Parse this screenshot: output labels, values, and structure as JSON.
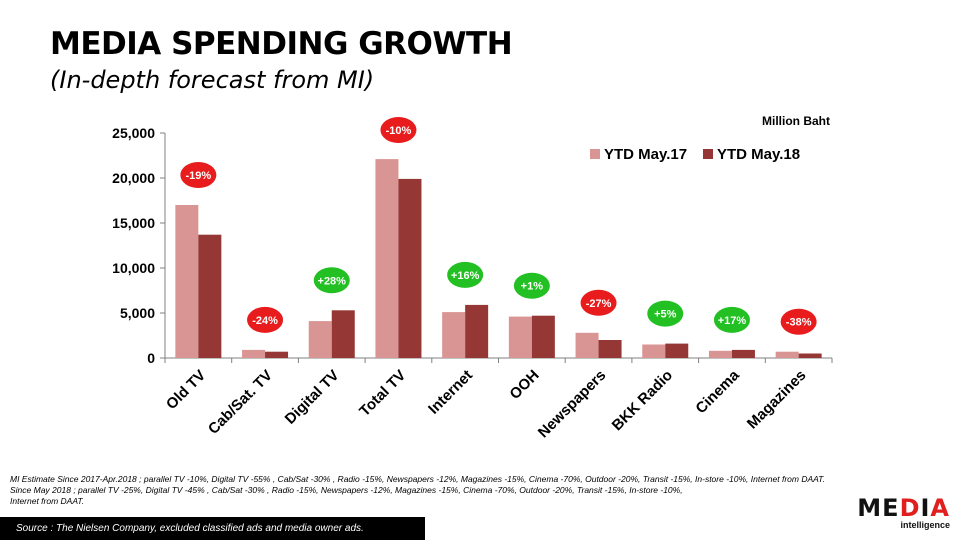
{
  "slide": {
    "title": "MEDIA SPENDING GROWTH",
    "subtitle": "(In-depth forecast from MI)",
    "unit": "Million Baht",
    "notes": [
      "MI Estimate Since 2017-Apr.2018 ; parallel TV -10%, Digital TV -55% , Cab/Sat -30% , Radio -15%, Newspapers -12%, Magazines -15%, Cinema -70%, Outdoor -20%, Transit -15%, In-store -10%, Internet from DAAT.",
      "Since May 2018 ; parallel TV -25%, Digital TV -45% , Cab/Sat -30% , Radio -15%, Newspapers -12%, Magazines -15%, Cinema -70%, Outdoor -20%, Transit -15%, In-store -10%,",
      "Internet from DAAT."
    ],
    "source": "Source :  The Nielsen Company, excluded classified ads and media owner ads.",
    "logo": {
      "part1": "ME",
      "part2": "D",
      "part3": "I",
      "part4": "A",
      "sub": "intelligence"
    }
  },
  "colors": {
    "series1": "#d99594",
    "series2": "#953735",
    "badge_negative": "#e81c1c",
    "badge_positive": "#22c022",
    "logo_red": "#e01f1f"
  },
  "chart_data": {
    "type": "bar",
    "categories": [
      "Old TV",
      "Cab/Sat. TV",
      "Digital TV",
      "Total TV",
      "Internet",
      "OOH",
      "Newspapers",
      "BKK Radio",
      "Cinema",
      "Magazines"
    ],
    "series": [
      {
        "name": "YTD May.17",
        "values": [
          17000,
          900,
          4100,
          22100,
          5100,
          4600,
          2800,
          1500,
          800,
          700
        ]
      },
      {
        "name": "YTD May.18",
        "values": [
          13700,
          700,
          5300,
          19900,
          5900,
          4700,
          2000,
          1600,
          900,
          500
        ]
      }
    ],
    "growth_labels": [
      "-19%",
      "-24%",
      "+28%",
      "-10%",
      "+16%",
      "+1%",
      "-27%",
      "+5%",
      "+17%",
      "-38%"
    ],
    "y_ticks": [
      "0",
      "5,000",
      "10,000",
      "15,000",
      "20,000",
      "25,000"
    ],
    "ylim": [
      0,
      25000
    ],
    "legend_position": "top-right",
    "grid": false,
    "xlabel": "",
    "ylabel": ""
  }
}
